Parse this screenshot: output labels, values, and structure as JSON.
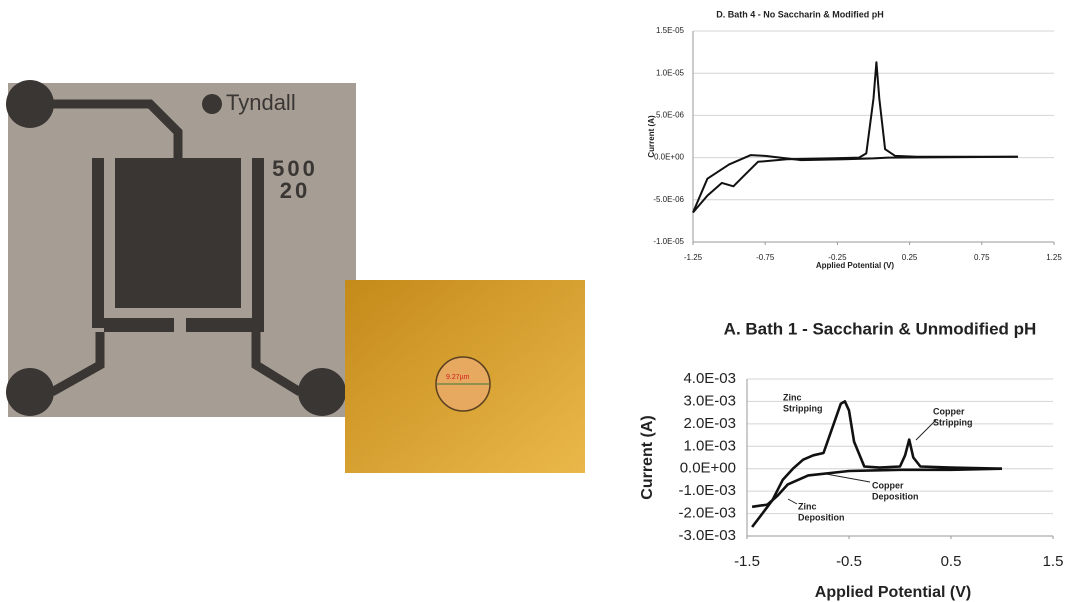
{
  "images": {
    "chip_logo": "Tyndall",
    "chip_codes": [
      "500",
      "20"
    ],
    "micrograph_scale": "9.27µm"
  },
  "chart_data": [
    {
      "type": "line",
      "title": "D. Bath 4 - No Saccharin & Modified pH",
      "x_label": "Applied Potential (V)",
      "y_label": "Current (A)",
      "xlim": [
        -1.25,
        1.25
      ],
      "xticks": [
        -1.25,
        -0.75,
        -0.25,
        0.25,
        0.75,
        1.25
      ],
      "ylim": [
        -1e-05,
        1.5e-05
      ],
      "yticks": [
        {
          "value": -1e-05,
          "label": "-1.0E-05"
        },
        {
          "value": -5e-06,
          "label": "-5.0E-06"
        },
        {
          "value": 0,
          "label": "0.0E+00"
        },
        {
          "value": 5e-06,
          "label": "5.0E-06"
        },
        {
          "value": 1e-05,
          "label": "1.0E-05"
        },
        {
          "value": 1.5e-05,
          "label": "1.5E-05"
        }
      ],
      "grid": true,
      "series": [
        {
          "color": "#111111",
          "x": [
            -1.25,
            -1.15,
            -1.05,
            -0.97,
            -0.9,
            -0.8,
            -0.6,
            -0.3,
            -0.1,
            -0.05,
            0.0,
            0.02,
            0.04,
            0.08,
            0.15,
            0.3,
            0.6,
            1.0
          ],
          "values": [
            -6.5e-06,
            -4.5e-06,
            -3e-06,
            -3.4e-06,
            -2.2e-06,
            -5e-07,
            -2e-07,
            -1e-07,
            0,
            5e-07,
            7e-06,
            1.13e-05,
            7e-06,
            1e-06,
            2e-07,
            1e-07,
            1e-07,
            1e-07
          ]
        },
        {
          "color": "#111111",
          "x": [
            1.0,
            0.5,
            0.1,
            0.0,
            -0.2,
            -0.5,
            -0.75,
            -0.85,
            -1.0,
            -1.15,
            -1.25
          ],
          "values": [
            1e-07,
            5e-08,
            0,
            -1e-07,
            -2e-07,
            -3e-07,
            2e-07,
            3e-07,
            -8e-07,
            -2.5e-06,
            -6.5e-06
          ]
        }
      ]
    },
    {
      "type": "line",
      "title": "A. Bath 1 - Saccharin & Unmodified pH",
      "x_label": "Applied Potential (V)",
      "y_label": "Current (A)",
      "xlim": [
        -1.5,
        1.5
      ],
      "xticks": [
        -1.5,
        -0.5,
        0.5,
        1.5
      ],
      "ylim": [
        -0.003,
        0.004
      ],
      "yticks": [
        {
          "value": -0.003,
          "label": "-3.0E-03"
        },
        {
          "value": -0.002,
          "label": "-2.0E-03"
        },
        {
          "value": -0.001,
          "label": "-1.0E-03"
        },
        {
          "value": 0,
          "label": "0.0E+00"
        },
        {
          "value": 0.001,
          "label": "1.0E-03"
        },
        {
          "value": 0.002,
          "label": "2.0E-03"
        },
        {
          "value": 0.003,
          "label": "3.0E-03"
        },
        {
          "value": 0.004,
          "label": "4.0E-03"
        }
      ],
      "grid": true,
      "annotations": [
        [
          "Zinc",
          "Stripping"
        ],
        [
          "Copper",
          "Stripping"
        ],
        [
          "Copper",
          "Deposition"
        ],
        [
          "Zinc",
          "Deposition"
        ]
      ],
      "series": [
        {
          "color": "#111111",
          "x": [
            -1.45,
            -1.35,
            -1.25,
            -1.15,
            -1.05,
            -0.95,
            -0.85,
            -0.75,
            -0.65,
            -0.58,
            -0.54,
            -0.5,
            -0.45,
            -0.35,
            -0.2,
            0.0,
            0.05,
            0.09,
            0.13,
            0.2,
            0.5,
            1.0
          ],
          "values": [
            -0.0026,
            -0.002,
            -0.0014,
            -0.0005,
            0,
            0.0004,
            0.0006,
            0.0007,
            0.002,
            0.0029,
            0.003,
            0.0026,
            0.0012,
            0.0001,
            5e-05,
            0.0001,
            0.0006,
            0.0013,
            0.0005,
            0.0001,
            5e-05,
            0
          ]
        },
        {
          "color": "#111111",
          "x": [
            1.0,
            0.5,
            0.0,
            -0.5,
            -0.9,
            -1.1,
            -1.2,
            -1.3,
            -1.45
          ],
          "values": [
            0,
            -5e-05,
            -5e-05,
            -0.0001,
            -0.0003,
            -0.0007,
            -0.0012,
            -0.0016,
            -0.0017
          ]
        }
      ]
    }
  ]
}
